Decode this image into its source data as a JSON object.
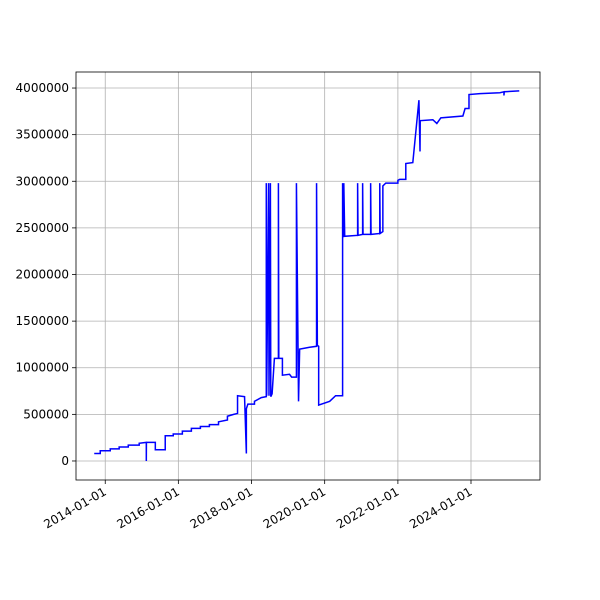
{
  "chart_data": {
    "type": "line",
    "color": "#0000ff",
    "grid": true,
    "xlim": [
      "2013-03-15",
      "2025-11-20"
    ],
    "xticks": [
      "2014-01-01",
      "2016-01-01",
      "2018-01-01",
      "2020-01-01",
      "2022-01-01",
      "2024-01-01"
    ],
    "ylim": [
      -204000,
      4172000
    ],
    "yticks": [
      0,
      500000,
      1000000,
      1500000,
      2000000,
      2500000,
      3000000,
      3500000,
      4000000
    ],
    "x": [
      "2013-09-13",
      "2013-11-12",
      "2013-11-12",
      "2014-02-20",
      "2014-02-20",
      "2014-05-20",
      "2014-05-20",
      "2014-08-19",
      "2014-08-19",
      "2014-12-06",
      "2014-12-06",
      "2015-02-15",
      "2015-02-15",
      "2015-02-16",
      "2015-05-16",
      "2015-05-16",
      "2015-08-23",
      "2015-08-23",
      "2015-11-11",
      "2015-11-11",
      "2016-02-10",
      "2016-02-10",
      "2016-05-10",
      "2016-05-10",
      "2016-08-08",
      "2016-08-08",
      "2016-11-06",
      "2016-11-06",
      "2017-02-05",
      "2017-02-05",
      "2017-05-05",
      "2017-05-05",
      "2017-07-06",
      "2017-08-14",
      "2017-08-14",
      "2017-10-23",
      "2017-11-10",
      "2017-11-10",
      "2017-11-25",
      "2018-01-30",
      "2018-01-30",
      "2018-04-08",
      "2018-05-28",
      "2018-05-28",
      "2018-06-01",
      "2018-06-20",
      "2018-06-24",
      "2018-07-08",
      "2018-07-12",
      "2018-07-25",
      "2018-08-17",
      "2018-09-26",
      "2018-09-26",
      "2018-09-30",
      "2018-11-05",
      "2018-11-05",
      "2019-01-15",
      "2019-02-05",
      "2019-03-25",
      "2019-03-25",
      "2019-04-15",
      "2019-04-26",
      "2019-08-04",
      "2019-10-12",
      "2019-10-12",
      "2019-10-20",
      "2019-11-02",
      "2019-11-02",
      "2020-02-20",
      "2020-04-19",
      "2020-06-28",
      "2020-06-28",
      "2020-07-05",
      "2020-07-10",
      "2020-07-19",
      "2020-11-25",
      "2020-11-25",
      "2020-11-29",
      "2021-01-14",
      "2021-01-14",
      "2021-01-18",
      "2021-04-04",
      "2021-04-04",
      "2021-04-08",
      "2021-07-04",
      "2021-07-04",
      "2021-07-08",
      "2021-08-04",
      "2021-08-04",
      "2021-09-02",
      "2022-01-01",
      "2022-01-01",
      "2022-01-19",
      "2022-03-21",
      "2022-03-21",
      "2022-05-30",
      "2022-07-30",
      "2022-08-10",
      "2022-08-12",
      "2022-12-16",
      "2023-01-25",
      "2023-03-06",
      "2023-10-12",
      "2023-11-03",
      "2023-12-12",
      "2023-12-12",
      "2024-03-31",
      "2024-10-16",
      "2024-11-25",
      "2024-11-25",
      "2024-11-28",
      "2025-04-27"
    ],
    "values": [
      80000,
      80000,
      110000,
      110000,
      130000,
      130000,
      150000,
      150000,
      170000,
      170000,
      190000,
      200000,
      0,
      200000,
      200000,
      120000,
      120000,
      270000,
      270000,
      290000,
      290000,
      320000,
      320000,
      350000,
      350000,
      370000,
      370000,
      390000,
      390000,
      420000,
      440000,
      480000,
      500000,
      510000,
      700000,
      690000,
      80000,
      560000,
      610000,
      610000,
      640000,
      680000,
      690000,
      2980000,
      700000,
      2980000,
      700000,
      2980000,
      690000,
      720000,
      1100000,
      1100000,
      2980000,
      1100000,
      1100000,
      920000,
      930000,
      900000,
      900000,
      2980000,
      640000,
      1200000,
      1220000,
      1230000,
      2980000,
      1240000,
      1230000,
      600000,
      640000,
      700000,
      700000,
      2980000,
      2400000,
      2980000,
      2410000,
      2420000,
      2980000,
      2420000,
      2430000,
      2980000,
      2430000,
      2430000,
      2980000,
      2430000,
      2440000,
      2980000,
      2440000,
      2460000,
      2950000,
      2980000,
      2980000,
      3010000,
      3020000,
      3020000,
      3190000,
      3200000,
      3870000,
      3320000,
      3650000,
      3660000,
      3620000,
      3680000,
      3700000,
      3780000,
      3780000,
      3930000,
      3940000,
      3950000,
      3960000,
      3920000,
      3960000,
      3970000
    ]
  }
}
